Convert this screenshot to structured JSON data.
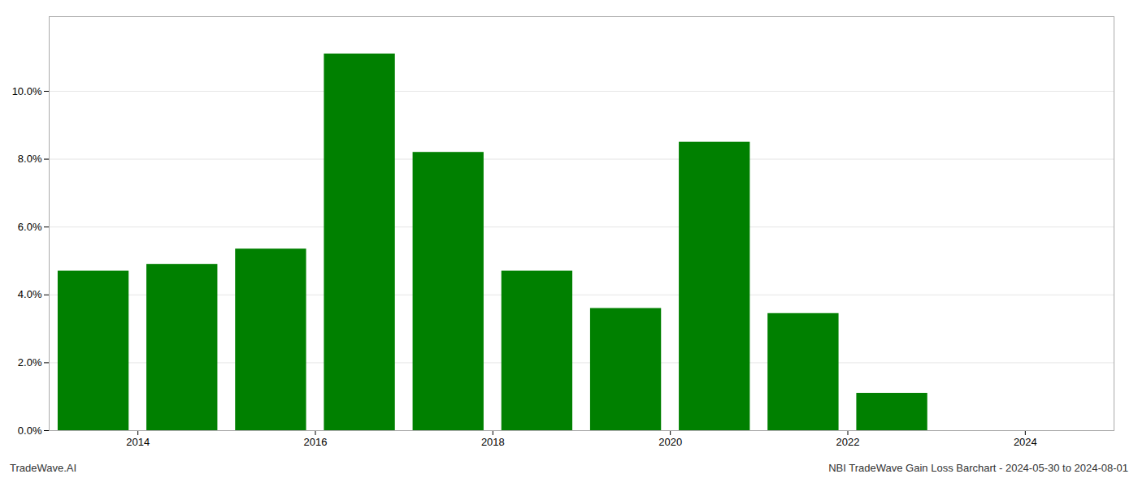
{
  "chart_data": {
    "type": "bar",
    "x": [
      2013.5,
      2014.5,
      2015.5,
      2016.5,
      2017.5,
      2018.5,
      2019.5,
      2020.5,
      2021.5,
      2022.5,
      2023.5
    ],
    "values": [
      0.047,
      0.049,
      0.0535,
      0.111,
      0.082,
      0.047,
      0.036,
      0.085,
      0.0345,
      0.011,
      0.0
    ],
    "color": "#008000",
    "xlim": [
      2013.0,
      2025.0
    ],
    "xticks": [
      2014,
      2016,
      2018,
      2020,
      2022,
      2024
    ],
    "ylim": [
      0,
      0.122
    ],
    "yticks": [
      {
        "value": 0.0,
        "label": "0.0%"
      },
      {
        "value": 0.02,
        "label": "2.0%"
      },
      {
        "value": 0.04,
        "label": "4.0%"
      },
      {
        "value": 0.06,
        "label": "6.0%"
      },
      {
        "value": 0.08,
        "label": "8.0%"
      },
      {
        "value": 0.1,
        "label": "10.0%"
      }
    ],
    "grid": true,
    "annotations": [
      "TradeWave.AI",
      "NBI TradeWave Gain Loss Barchart - 2024-05-30 to 2024-08-01"
    ]
  }
}
